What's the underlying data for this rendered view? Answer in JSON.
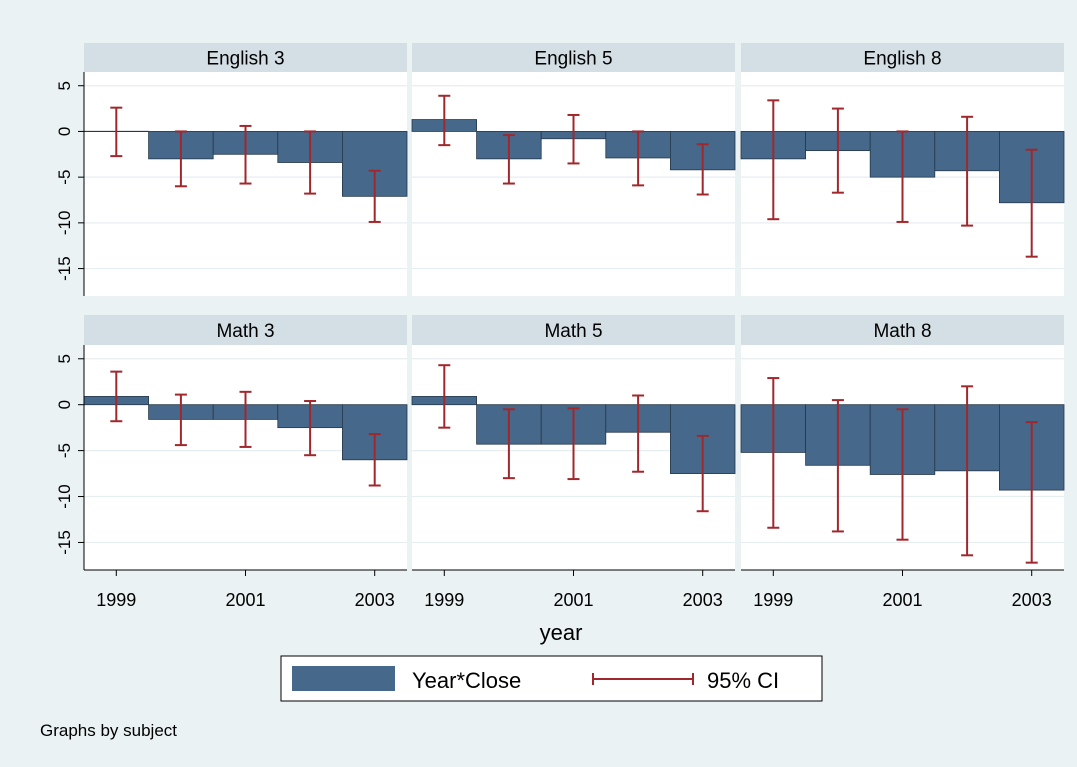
{
  "chart_data": {
    "type": "bar",
    "xlabel": "year",
    "ylabel": "",
    "ylim": [
      -18,
      6.5
    ],
    "yticks": [
      5,
      0,
      -5,
      -10,
      -15
    ],
    "ytick_labels": [
      "5",
      "0",
      "-5",
      "-10",
      "-15"
    ],
    "categories": [
      1999,
      2000,
      2001,
      2002,
      2003
    ],
    "xtick_values": [
      1999,
      2001,
      2003
    ],
    "xtick_labels": [
      "1999",
      "2001",
      "2003"
    ],
    "grid": true,
    "legend": {
      "placement": "bottom",
      "entries": [
        {
          "label": "Year*Close",
          "kind": "bar"
        },
        {
          "label": "95% CI",
          "kind": "errorbar"
        }
      ]
    },
    "note": "Graphs by subject",
    "colors": {
      "bar": "#46688a",
      "ci": "#a0282d",
      "outer_bg": "#eaf2f3",
      "panel_bg": "#ffffff",
      "strip_bg": "#d3dfe5",
      "grid": "#e7eef1"
    },
    "panels": [
      {
        "title": "English 3",
        "values": [
          0,
          -3.0,
          -2.5,
          -3.4,
          -7.1
        ],
        "ci_low": [
          -2.7,
          -6.0,
          -5.7,
          -6.8,
          -9.9
        ],
        "ci_high": [
          2.6,
          0.0,
          0.6,
          0.0,
          -4.3
        ]
      },
      {
        "title": "English 5",
        "values": [
          1.3,
          -3.0,
          -0.8,
          -2.9,
          -4.2
        ],
        "ci_low": [
          -1.5,
          -5.7,
          -3.5,
          -5.9,
          -6.9
        ],
        "ci_high": [
          3.9,
          -0.4,
          1.8,
          0.0,
          -1.4
        ]
      },
      {
        "title": "English 8",
        "values": [
          -3.0,
          -2.1,
          -5.0,
          -4.3,
          -7.8
        ],
        "ci_low": [
          -9.6,
          -6.7,
          -9.9,
          -10.3,
          -13.7
        ],
        "ci_high": [
          3.4,
          2.5,
          0.0,
          1.6,
          -2.0
        ]
      },
      {
        "title": "Math 3",
        "values": [
          0.9,
          -1.6,
          -1.6,
          -2.5,
          -6.0
        ],
        "ci_low": [
          -1.8,
          -4.4,
          -4.6,
          -5.5,
          -8.8
        ],
        "ci_high": [
          3.6,
          1.1,
          1.4,
          0.4,
          -3.2
        ]
      },
      {
        "title": "Math 5",
        "values": [
          0.9,
          -4.3,
          -4.3,
          -3.0,
          -7.5
        ],
        "ci_low": [
          -2.5,
          -8.0,
          -8.1,
          -7.3,
          -11.6
        ],
        "ci_high": [
          4.3,
          -0.5,
          -0.4,
          1.0,
          -3.4
        ]
      },
      {
        "title": "Math 8",
        "values": [
          -5.2,
          -6.6,
          -7.6,
          -7.2,
          -9.3
        ],
        "ci_low": [
          -13.4,
          -13.8,
          -14.7,
          -16.4,
          -17.2
        ],
        "ci_high": [
          2.9,
          0.5,
          -0.5,
          2.0,
          -1.9
        ]
      }
    ]
  }
}
